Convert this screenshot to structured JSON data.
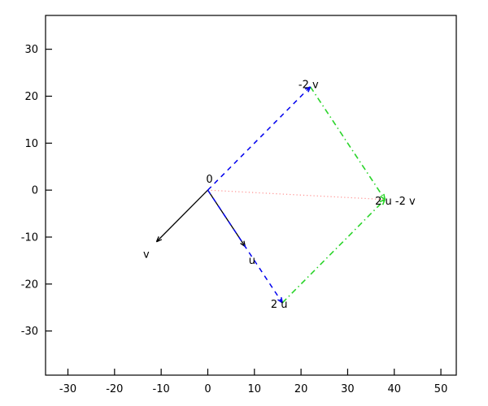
{
  "chart_data": {
    "type": "line",
    "title": "",
    "xlabel": "",
    "ylabel": "",
    "grid": false,
    "legend": false,
    "background_color": "#ffffff",
    "axis_color": "#000000",
    "text_color": "#000000",
    "xlim": [
      -34.8,
      53.3
    ],
    "ylim": [
      -39.4,
      37.2
    ],
    "x_ticks": [
      -30,
      -20,
      -10,
      0,
      10,
      20,
      30,
      40,
      50
    ],
    "y_ticks": [
      30,
      20,
      10,
      0,
      -10,
      -20,
      -30
    ],
    "points": {
      "origin": [
        0,
        0
      ],
      "u": [
        8,
        -12
      ],
      "v": [
        -11,
        -11
      ],
      "two_u": [
        16,
        -24
      ],
      "minus_two_v": [
        22,
        22
      ],
      "two_u_minus_two_v": [
        38,
        -2
      ]
    },
    "vectors": [
      {
        "name": "resultant-0-to-2u-2v",
        "from": [
          0,
          0
        ],
        "to": [
          38,
          -2
        ],
        "style": "dotted",
        "color": "#ff9090",
        "arrow": false
      },
      {
        "name": "side-minus2v-to-2u-2v",
        "from": [
          22,
          22
        ],
        "to": [
          38,
          -2
        ],
        "style": "dashdot",
        "color": "#2ad42a",
        "arrow": true
      },
      {
        "name": "side-2u-to-2u-2v",
        "from": [
          16,
          -24
        ],
        "to": [
          38,
          -2
        ],
        "style": "dashdot",
        "color": "#2ad42a",
        "arrow": true
      },
      {
        "name": "vector-v",
        "from": [
          0,
          0
        ],
        "to": [
          -11,
          -11
        ],
        "style": "solid",
        "color": "#000000",
        "arrow": true
      },
      {
        "name": "vector-u",
        "from": [
          0,
          0
        ],
        "to": [
          8,
          -12
        ],
        "style": "solid",
        "color": "#000000",
        "arrow": true
      },
      {
        "name": "vector-2u",
        "from": [
          0,
          0
        ],
        "to": [
          16,
          -24
        ],
        "style": "dashed",
        "color": "#0000ee",
        "arrow": true
      },
      {
        "name": "vector-minus2v",
        "from": [
          0,
          0
        ],
        "to": [
          22,
          22
        ],
        "style": "dashed",
        "color": "#0000ee",
        "arrow": true
      }
    ],
    "point_labels": [
      {
        "text": "0",
        "x": 0.35,
        "y": 2.4
      },
      {
        "text": "v",
        "x": -13.2,
        "y": -13.6
      },
      {
        "text": "u",
        "x": 9.5,
        "y": -14.9
      },
      {
        "text": "-2 v",
        "x": 21.6,
        "y": 22.5
      },
      {
        "text": "2 u",
        "x": 15.3,
        "y": -24.3
      },
      {
        "text": "2 u -2 v",
        "x": 40.2,
        "y": -2.3
      }
    ]
  }
}
